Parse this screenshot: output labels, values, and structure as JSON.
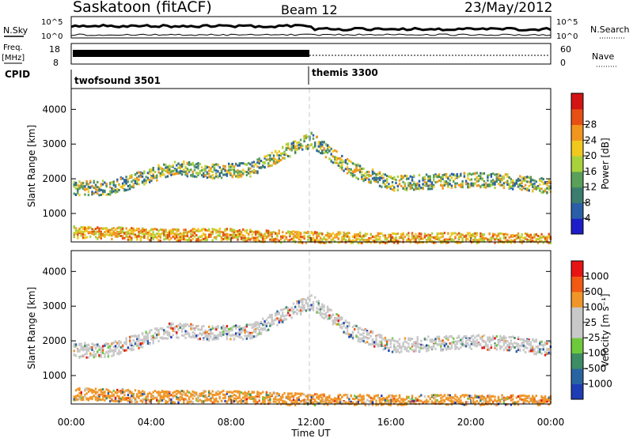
{
  "header": {
    "station": "Saskatoon (fitACF)",
    "beam": "Beam 12",
    "date": "23/May/2012"
  },
  "top_strip": {
    "left_label": "N.Sky",
    "left_ticks": [
      "10^5",
      "10^0"
    ],
    "right_ticks": [
      "10^5",
      "10^0"
    ],
    "right_label": "N.Search"
  },
  "freq_strip": {
    "left_label": "Freq.",
    "left_unit": "[MHz]",
    "left_ticks": [
      "18",
      "8"
    ],
    "right_ticks": [
      "60",
      "0"
    ],
    "right_label": "Nave"
  },
  "cpid": {
    "label": "CPID",
    "modes": [
      {
        "name": "twofsound 3501",
        "start_hour": 0
      },
      {
        "name": "themis 3300",
        "start_hour": 12
      }
    ]
  },
  "axes": {
    "x_ticks": [
      "00:00",
      "04:00",
      "08:00",
      "12:00",
      "16:00",
      "20:00",
      "00:00"
    ],
    "x_label": "Time UT",
    "y_label": "Slant Range [km]",
    "y_ticks": [
      "1000",
      "2000",
      "3000",
      "4000"
    ],
    "y_range_km": [
      180,
      4600
    ]
  },
  "chart_data": [
    {
      "type": "heatmap",
      "x_range_hours": [
        0,
        24
      ],
      "y_range_km": [
        180,
        4600
      ],
      "colorbar": {
        "label": "Power [dB]",
        "ticks": [
          "4",
          "8",
          "12",
          "16",
          "20",
          "24",
          "28"
        ],
        "colors": [
          "#1e1ec8",
          "#2a5fa8",
          "#3b7d6e",
          "#5aa05a",
          "#a8d23c",
          "#f0c81e",
          "#f0961e",
          "#e65014",
          "#d21414"
        ]
      },
      "bands": [
        {
          "points": [
            [
              0,
              1750
            ],
            [
              2,
              1780
            ],
            [
              3.5,
              2050
            ],
            [
              5,
              2350
            ],
            [
              7,
              2250
            ],
            [
              9,
              2300
            ],
            [
              11,
              2900
            ],
            [
              12,
              3150
            ],
            [
              14,
              2300
            ],
            [
              16,
              1900
            ],
            [
              18,
              1950
            ],
            [
              20,
              2000
            ],
            [
              22,
              1950
            ],
            [
              24,
              1800
            ]
          ],
          "color_hex": "#5aa05a"
        },
        {
          "points": [
            [
              0,
              500
            ],
            [
              4,
              420
            ],
            [
              8,
              420
            ],
            [
              12,
              330
            ],
            [
              16,
              290
            ],
            [
              20,
              300
            ],
            [
              24,
              280
            ]
          ],
          "color_hex": "#d21414"
        }
      ]
    },
    {
      "type": "heatmap",
      "x_range_hours": [
        0,
        24
      ],
      "y_range_km": [
        180,
        4600
      ],
      "colorbar": {
        "label": "Velocity [m s⁻¹]",
        "ticks": [
          "1000",
          "500",
          "100",
          "25",
          "-25",
          "-100",
          "-500",
          "-1000"
        ],
        "colors": [
          "#1e3cb4",
          "#2a64a0",
          "#3c8c64",
          "#6ec83c",
          "#c8c8c8",
          "#c8c8c8",
          "#f09628",
          "#f05a14",
          "#e61414"
        ]
      },
      "bands": [
        {
          "points": [
            [
              0,
              1750
            ],
            [
              2,
              1780
            ],
            [
              3.5,
              2050
            ],
            [
              5,
              2350
            ],
            [
              7,
              2250
            ],
            [
              9,
              2300
            ],
            [
              11,
              2900
            ],
            [
              12,
              3150
            ],
            [
              14,
              2300
            ],
            [
              16,
              1900
            ],
            [
              18,
              1950
            ],
            [
              20,
              2000
            ],
            [
              22,
              1950
            ],
            [
              24,
              1800
            ]
          ],
          "color_hex": "#c8c8c8"
        },
        {
          "points": [
            [
              0,
              500
            ],
            [
              4,
              420
            ],
            [
              8,
              420
            ],
            [
              12,
              330
            ],
            [
              16,
              290
            ],
            [
              20,
              300
            ],
            [
              24,
              280
            ]
          ],
          "color_hex": "#f09628"
        }
      ]
    }
  ]
}
